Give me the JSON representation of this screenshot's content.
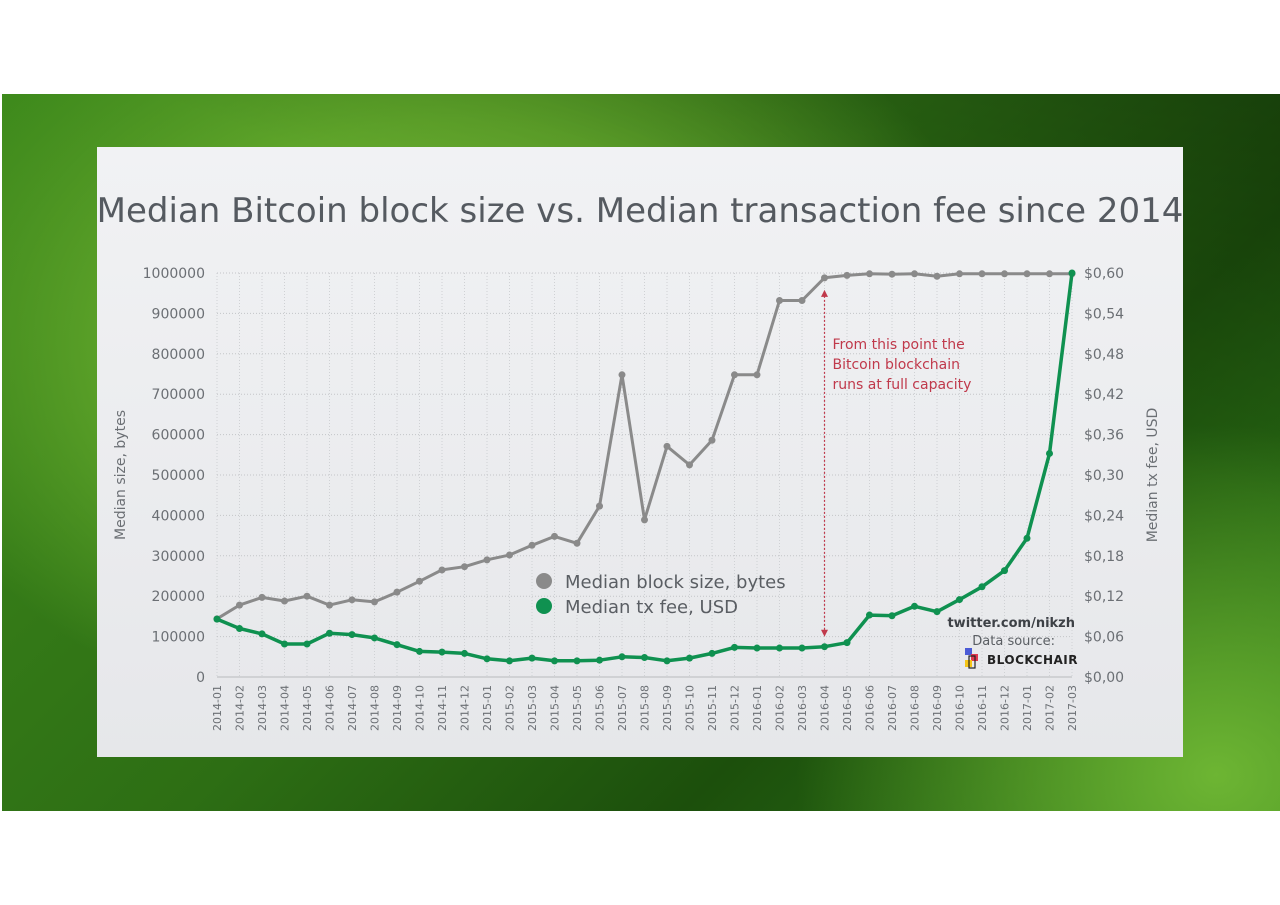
{
  "chart_data": {
    "type": "line",
    "title": "Median Bitcoin block size vs. Median transaction fee since 2014",
    "ylabel": "Median size, bytes",
    "y2label": "Median tx fee, USD",
    "ylim": [
      0,
      1000000
    ],
    "y2lim": [
      0,
      0.6
    ],
    "yticks": [
      0,
      100000,
      200000,
      300000,
      400000,
      500000,
      600000,
      700000,
      800000,
      900000,
      1000000
    ],
    "yticklabels": [
      "0",
      "100000",
      "200000",
      "300000",
      "400000",
      "500000",
      "600000",
      "700000",
      "800000",
      "900000",
      "1000000"
    ],
    "y2ticklabels": [
      "$0,00",
      "$0,06",
      "$0,12",
      "$0,18",
      "$0,24",
      "$0,30",
      "$0,36",
      "$0,42",
      "$0,48",
      "$0,54",
      "$0,60"
    ],
    "categories": [
      "2014-01",
      "2014-02",
      "2014-03",
      "2014-04",
      "2014-05",
      "2014-06",
      "2014-07",
      "2014-08",
      "2014-09",
      "2014-10",
      "2014-11",
      "2014-12",
      "2015-01",
      "2015-02",
      "2015-03",
      "2015-04",
      "2015-05",
      "2015-06",
      "2015-07",
      "2015-08",
      "2015-09",
      "2015-10",
      "2015-11",
      "2015-12",
      "2016-01",
      "2016-02",
      "2016-03",
      "2016-04",
      "2016-05",
      "2016-06",
      "2016-07",
      "2016-08",
      "2016-09",
      "2016-10",
      "2016-11",
      "2016-12",
      "2017-01",
      "2017-02",
      "2017-03"
    ],
    "series": [
      {
        "name": "Median block size, bytes",
        "axis": "left",
        "color": "#8a8a8a",
        "values": [
          144000,
          178000,
          197000,
          188000,
          200000,
          178000,
          191000,
          186000,
          210000,
          237000,
          265000,
          273000,
          290000,
          302000,
          326000,
          348000,
          331000,
          423000,
          748000,
          389000,
          571000,
          525000,
          586000,
          748000,
          748000,
          932000,
          932000,
          988000,
          994000,
          998000,
          997000,
          998000,
          992000,
          998000,
          998000,
          998000,
          998000,
          998000,
          998000
        ]
      },
      {
        "name": "Median tx fee, USD",
        "axis": "right",
        "color": "#0f9150",
        "values": [
          0.086,
          0.072,
          0.064,
          0.049,
          0.049,
          0.065,
          0.063,
          0.058,
          0.048,
          0.038,
          0.037,
          0.035,
          0.027,
          0.024,
          0.028,
          0.024,
          0.024,
          0.025,
          0.03,
          0.029,
          0.024,
          0.028,
          0.035,
          0.044,
          0.043,
          0.043,
          0.043,
          0.045,
          0.051,
          0.092,
          0.091,
          0.105,
          0.097,
          0.115,
          0.134,
          0.158,
          0.206,
          0.332,
          0.6
        ]
      }
    ],
    "annotation": {
      "lines": [
        "From this point the",
        "Bitcoin blockchain",
        "runs at full capacity"
      ],
      "at_category": "2016-04",
      "color": "#c0394b"
    },
    "legend": {
      "position": "center"
    },
    "grid": true
  },
  "credits": {
    "twitter": "twitter.com/nikzh",
    "source_label": "Data source:",
    "source_name": "BLOCKCHAIR",
    "logo_icon": "blockchair-logo-icon"
  }
}
